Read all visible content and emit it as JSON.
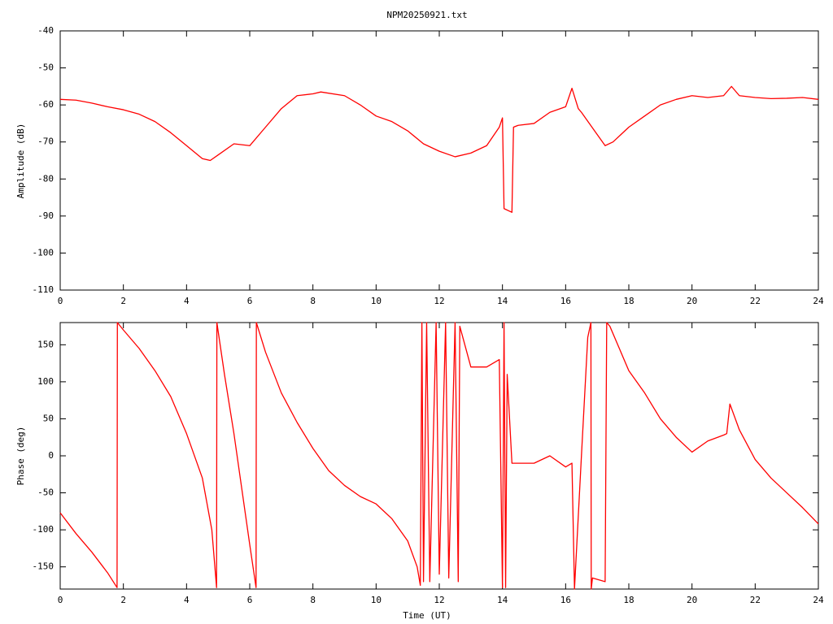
{
  "chart_data": [
    {
      "type": "line",
      "title": "NPM20250921.txt",
      "y_label": "Amplitude (dB)",
      "color": "#ff0000",
      "x": [
        0,
        0.5,
        1,
        1.5,
        2,
        2.5,
        3,
        3.5,
        4,
        4.5,
        4.75,
        5,
        5.5,
        6,
        6.5,
        7,
        7.5,
        8,
        8.25,
        9,
        9.5,
        10,
        10.5,
        11,
        11.5,
        12,
        12.5,
        13,
        13.5,
        13.9,
        14,
        14.05,
        14.3,
        14.35,
        14.5,
        15,
        15.5,
        16,
        16.2,
        16.4,
        16.5,
        17,
        17.25,
        17.5,
        18,
        18.5,
        19,
        19.5,
        20,
        20.5,
        21,
        21.25,
        21.5,
        22,
        22.5,
        23,
        23.5,
        24
      ],
      "values": [
        -58.5,
        -58.7,
        -59.5,
        -60.5,
        -61.3,
        -62.5,
        -64.5,
        -67.5,
        -71,
        -74.5,
        -75,
        -73.5,
        -70.5,
        -71,
        -66,
        -61,
        -57.5,
        -57,
        -56.5,
        -57.5,
        -60,
        -63,
        -64.5,
        -67,
        -70.5,
        -72.5,
        -74,
        -73,
        -71,
        -66,
        -63.5,
        -88,
        -89,
        -66,
        -65.5,
        -65,
        -62,
        -60.5,
        -55.5,
        -61,
        -62,
        -68,
        -71,
        -70,
        -66,
        -63,
        -60,
        -58.5,
        -57.5,
        -58,
        -57.5,
        -55,
        -57.5,
        -58,
        -58.3,
        -58.2,
        -58,
        -58.5
      ],
      "xlim": [
        0,
        24
      ],
      "xticks": [
        0,
        2,
        4,
        6,
        8,
        10,
        12,
        14,
        16,
        18,
        20,
        22,
        24
      ],
      "ylim": [
        -110,
        -40
      ],
      "yticks": [
        -110,
        -100,
        -90,
        -80,
        -70,
        -60,
        -50,
        -40
      ]
    },
    {
      "type": "line",
      "x_label": "Time (UT)",
      "y_label": "Phase (deg)",
      "color": "#ff0000",
      "x": [
        0,
        0.5,
        1,
        1.5,
        1.8,
        1.81,
        2,
        2.5,
        3,
        3.5,
        4,
        4.5,
        4.8,
        4.95,
        4.96,
        5.2,
        5.5,
        6,
        6.2,
        6.21,
        6.5,
        7,
        7.5,
        8,
        8.5,
        9,
        9.5,
        10,
        10.5,
        11,
        11.3,
        11.4,
        11.45,
        11.5,
        11.6,
        11.7,
        11.9,
        12,
        12.2,
        12.3,
        12.5,
        12.6,
        12.65,
        13,
        13.5,
        13.9,
        14,
        14.05,
        14.1,
        14.15,
        14.3,
        14.5,
        15,
        15.5,
        16,
        16.2,
        16.28,
        16.5,
        16.7,
        16.8,
        16.81,
        16.85,
        17.25,
        17.3,
        17.4,
        18,
        18.5,
        19,
        19.5,
        20,
        20.5,
        21,
        21.1,
        21.2,
        21.5,
        22,
        22.5,
        23,
        23.5,
        24
      ],
      "values": [
        -77,
        -105,
        -130,
        -158,
        -178,
        180,
        170,
        145,
        115,
        80,
        30,
        -30,
        -100,
        -178,
        180,
        110,
        30,
        -120,
        -178,
        180,
        140,
        85,
        45,
        10,
        -20,
        -40,
        -55,
        -65,
        -85,
        -115,
        -150,
        -175,
        180,
        -170,
        180,
        -170,
        180,
        -160,
        180,
        -165,
        180,
        -170,
        175,
        120,
        120,
        130,
        -178,
        180,
        -178,
        110,
        -10,
        -10,
        -10,
        0,
        -15,
        -10,
        -180,
        0,
        160,
        180,
        -180,
        -165,
        -170,
        180,
        175,
        115,
        85,
        50,
        25,
        5,
        20,
        28,
        30,
        70,
        35,
        -5,
        -30,
        -50,
        -70,
        -92
      ],
      "xlim": [
        0,
        24
      ],
      "xticks": [
        0,
        2,
        4,
        6,
        8,
        10,
        12,
        14,
        16,
        18,
        20,
        22,
        24
      ],
      "ylim": [
        -180,
        180
      ],
      "yticks": [
        -150,
        -100,
        -50,
        0,
        50,
        100,
        150
      ]
    }
  ]
}
